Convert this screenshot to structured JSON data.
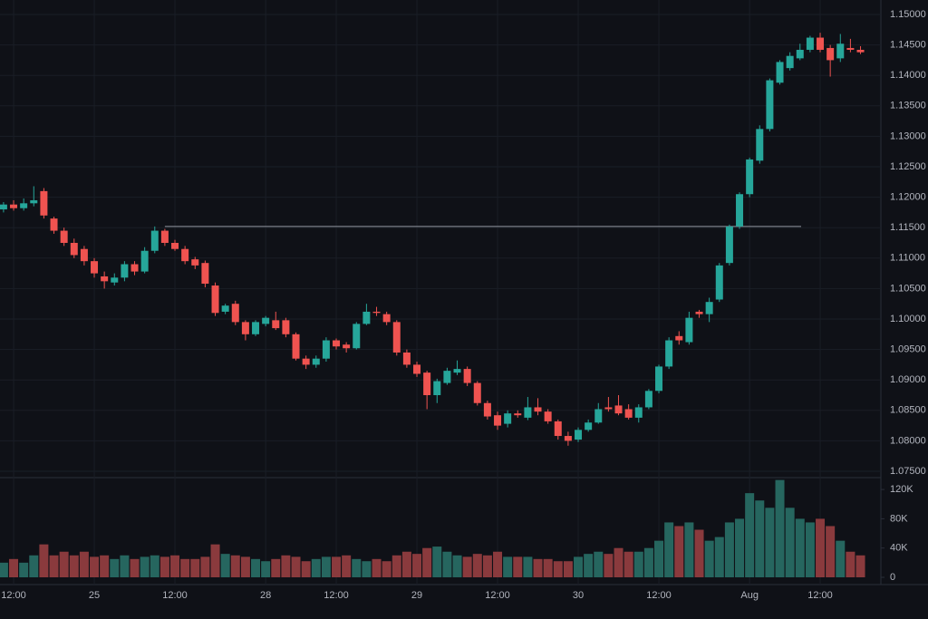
{
  "chart_data": {
    "type": "candlestick",
    "categories": [
      null,
      "12:00",
      null,
      null,
      null,
      null,
      null,
      null,
      null,
      "25",
      null,
      null,
      null,
      null,
      null,
      null,
      null,
      "12:00",
      null,
      null,
      null,
      null,
      null,
      null,
      null,
      null,
      "28",
      null,
      null,
      null,
      null,
      null,
      null,
      "12:00",
      null,
      null,
      null,
      null,
      null,
      null,
      null,
      "29",
      null,
      null,
      null,
      null,
      null,
      null,
      null,
      "12:00",
      null,
      null,
      null,
      null,
      null,
      null,
      null,
      "30",
      null,
      null,
      null,
      null,
      null,
      null,
      null,
      "12:00",
      null,
      null,
      null,
      null,
      null,
      null,
      null,
      null,
      "Aug",
      null,
      null,
      null,
      null,
      null,
      null,
      "12:00",
      null,
      null,
      null,
      null
    ],
    "open": [
      1.118,
      1.1188,
      1.1182,
      1.119,
      1.121,
      1.1165,
      1.1145,
      1.1125,
      1.1115,
      1.1095,
      1.107,
      1.106,
      1.1068,
      1.109,
      1.1078,
      1.1112,
      1.1145,
      1.1125,
      1.1115,
      1.1098,
      1.1092,
      1.1055,
      1.1012,
      1.1025,
      1.0995,
      1.0975,
      1.0992,
      1.0998,
      1.0998,
      1.0975,
      1.0935,
      1.0925,
      1.0935,
      1.0965,
      1.0958,
      1.0952,
      1.0992,
      1.1012,
      1.1008,
      1.0995,
      1.0945,
      1.0925,
      1.0912,
      1.0875,
      1.0895,
      1.0912,
      1.0918,
      1.0895,
      1.0862,
      1.0842,
      1.0828,
      1.0845,
      1.0838,
      1.0855,
      1.0848,
      1.0832,
      1.0808,
      1.0802,
      1.0818,
      1.083,
      1.0855,
      1.0858,
      1.0852,
      1.0838,
      1.0855,
      1.0882,
      1.0922,
      1.0972,
      1.0962,
      1.1012,
      1.1008,
      1.1032,
      1.1092,
      1.1152,
      1.1205,
      1.126,
      1.1312,
      1.1388,
      1.1412,
      1.1428,
      1.1442,
      1.1462,
      1.1445,
      1.1428,
      1.1445,
      1.1442
    ],
    "high": [
      1.1192,
      1.1195,
      1.1198,
      1.1218,
      1.1215,
      1.1168,
      1.115,
      1.1132,
      1.112,
      1.11,
      1.1078,
      1.1075,
      1.1095,
      1.1095,
      1.1118,
      1.1152,
      1.1148,
      1.113,
      1.112,
      1.1102,
      1.1096,
      1.106,
      1.1025,
      1.103,
      1.0998,
      1.0998,
      1.1005,
      1.1012,
      1.1002,
      1.0978,
      1.094,
      1.094,
      1.097,
      1.0968,
      1.0962,
      1.0995,
      1.1025,
      1.102,
      1.1012,
      1.0998,
      1.095,
      1.093,
      1.0915,
      1.0902,
      1.092,
      1.0932,
      1.0922,
      1.0898,
      1.0866,
      1.0848,
      1.085,
      1.085,
      1.0872,
      1.087,
      1.0852,
      1.0835,
      1.0815,
      1.0822,
      1.0835,
      1.0862,
      1.0872,
      1.0875,
      1.086,
      1.086,
      1.0885,
      1.0925,
      1.097,
      1.098,
      1.1012,
      1.1015,
      1.1035,
      1.1092,
      1.1155,
      1.1208,
      1.1265,
      1.1318,
      1.1395,
      1.1425,
      1.1438,
      1.1452,
      1.1465,
      1.147,
      1.145,
      1.1468,
      1.146,
      1.1448
    ],
    "low": [
      1.1175,
      1.1178,
      1.1178,
      1.1185,
      1.1165,
      1.114,
      1.112,
      1.11,
      1.1088,
      1.1068,
      1.105,
      1.1055,
      1.1062,
      1.1072,
      1.1075,
      1.1108,
      1.112,
      1.1112,
      1.109,
      1.1082,
      1.1052,
      1.1005,
      1.1008,
      1.099,
      1.0965,
      1.0972,
      1.0988,
      1.0982,
      1.097,
      1.0932,
      1.0918,
      1.092,
      1.093,
      1.095,
      1.0945,
      1.095,
      1.099,
      1.1005,
      1.099,
      1.094,
      1.092,
      1.0905,
      1.0852,
      1.0862,
      1.0892,
      1.0908,
      1.089,
      1.0858,
      1.0835,
      1.0818,
      1.0822,
      1.0838,
      1.0834,
      1.0842,
      1.0828,
      1.0802,
      1.0792,
      1.0798,
      1.0815,
      1.0828,
      1.0848,
      1.0842,
      1.0835,
      1.083,
      1.0852,
      1.0878,
      1.0918,
      1.0958,
      1.0958,
      1.1002,
      1.0995,
      1.1028,
      1.1088,
      1.1148,
      1.12,
      1.1255,
      1.1308,
      1.1385,
      1.1408,
      1.1425,
      1.1438,
      1.1438,
      1.1398,
      1.1422,
      1.1438,
      1.1435
    ],
    "close": [
      1.1188,
      1.1182,
      1.119,
      1.1195,
      1.117,
      1.1145,
      1.1125,
      1.1105,
      1.1095,
      1.1075,
      1.1062,
      1.1068,
      1.109,
      1.1078,
      1.1112,
      1.1145,
      1.1125,
      1.1115,
      1.1095,
      1.1088,
      1.1058,
      1.101,
      1.1022,
      1.0995,
      1.0975,
      1.0995,
      1.1002,
      1.0985,
      1.0975,
      1.0935,
      1.0925,
      1.0935,
      1.0965,
      1.0955,
      1.0952,
      1.0992,
      1.1012,
      1.101,
      1.0995,
      1.0945,
      1.0925,
      1.091,
      1.0875,
      1.0898,
      1.0915,
      1.0918,
      1.0895,
      1.0862,
      1.084,
      1.0825,
      1.0845,
      1.0842,
      1.0855,
      1.0848,
      1.0832,
      1.0808,
      1.08,
      1.0818,
      1.083,
      1.0852,
      1.0852,
      1.0845,
      1.0838,
      1.0855,
      1.0882,
      1.0922,
      1.0965,
      1.0965,
      1.1002,
      1.1008,
      1.1028,
      1.1088,
      1.1152,
      1.1205,
      1.1262,
      1.1312,
      1.1392,
      1.1422,
      1.1432,
      1.1442,
      1.1462,
      1.1442,
      1.1425,
      1.1452,
      1.1442,
      1.1438
    ],
    "volume": [
      20000,
      25000,
      20000,
      30000,
      45000,
      30000,
      35000,
      30000,
      35000,
      28000,
      30000,
      25000,
      30000,
      25000,
      28000,
      30000,
      28000,
      30000,
      25000,
      25000,
      28000,
      45000,
      32000,
      30000,
      28000,
      25000,
      22000,
      25000,
      30000,
      28000,
      22000,
      25000,
      28000,
      28000,
      30000,
      25000,
      22000,
      25000,
      22000,
      30000,
      35000,
      32000,
      40000,
      42000,
      35000,
      30000,
      28000,
      32000,
      30000,
      35000,
      28000,
      28000,
      28000,
      25000,
      25000,
      22000,
      22000,
      28000,
      32000,
      35000,
      32000,
      40000,
      35000,
      35000,
      40000,
      50000,
      75000,
      70000,
      75000,
      65000,
      50000,
      55000,
      75000,
      80000,
      115000,
      105000,
      95000,
      133000,
      95000,
      80000,
      75000,
      80000,
      70000,
      50000,
      35000,
      30000
    ],
    "ylim": [
      1.07396,
      1.15238
    ],
    "yticks": [
      {
        "value": 1.15,
        "label": "1.15000"
      },
      {
        "value": 1.145,
        "label": "1.14500"
      },
      {
        "value": 1.14,
        "label": "1.14000"
      },
      {
        "value": 1.135,
        "label": "1.13500"
      },
      {
        "value": 1.13,
        "label": "1.13000"
      },
      {
        "value": 1.125,
        "label": "1.12500"
      },
      {
        "value": 1.12,
        "label": "1.12000"
      },
      {
        "value": 1.115,
        "label": "1.11500"
      },
      {
        "value": 1.11,
        "label": "1.11000"
      },
      {
        "value": 1.105,
        "label": "1.10500"
      },
      {
        "value": 1.1,
        "label": "1.10000"
      },
      {
        "value": 1.095,
        "label": "1.09500"
      },
      {
        "value": 1.09,
        "label": "1.09000"
      },
      {
        "value": 1.085,
        "label": "1.08500"
      },
      {
        "value": 1.08,
        "label": "1.08000"
      },
      {
        "value": 1.075,
        "label": "1.07500"
      }
    ],
    "volume_ylim": [
      0,
      135000
    ],
    "volume_ticks": [
      {
        "value": 120000,
        "label": "120K"
      },
      {
        "value": 80000,
        "label": "80K"
      },
      {
        "value": 40000,
        "label": "40K"
      },
      0
    ],
    "price_line": 1.1152,
    "up_color": "#26a69a",
    "down_color": "#ef5350",
    "volume_up_color": "#26665f",
    "volume_down_color": "#8a3a3d",
    "grid": true
  }
}
